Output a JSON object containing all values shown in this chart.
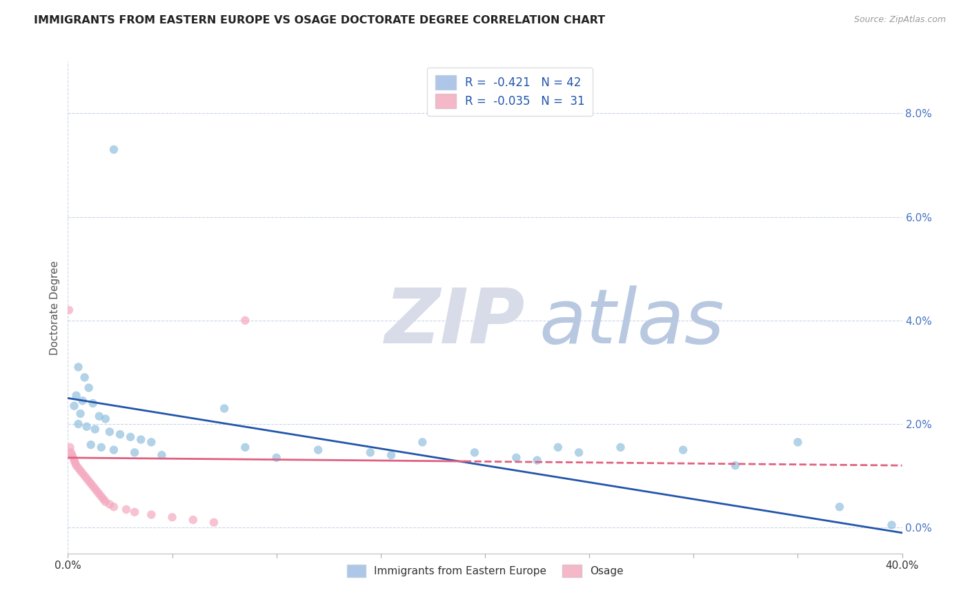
{
  "title": "IMMIGRANTS FROM EASTERN EUROPE VS OSAGE DOCTORATE DEGREE CORRELATION CHART",
  "source": "Source: ZipAtlas.com",
  "ylabel": "Doctorate Degree",
  "right_ytick_vals": [
    0.0,
    2.0,
    4.0,
    6.0,
    8.0
  ],
  "xlim": [
    0.0,
    40.0
  ],
  "ylim": [
    -0.5,
    9.0
  ],
  "legend_label_blue": "Immigrants from Eastern Europe",
  "legend_label_pink": "Osage",
  "legend_r_blue": "R =  -0.421",
  "legend_n_blue": "N = 42",
  "legend_r_pink": "R =  -0.035",
  "legend_n_pink": "N =  31",
  "blue_scatter": [
    [
      2.2,
      7.3
    ],
    [
      0.5,
      3.1
    ],
    [
      0.8,
      2.9
    ],
    [
      1.0,
      2.7
    ],
    [
      0.4,
      2.55
    ],
    [
      0.7,
      2.45
    ],
    [
      1.2,
      2.4
    ],
    [
      0.3,
      2.35
    ],
    [
      0.6,
      2.2
    ],
    [
      1.5,
      2.15
    ],
    [
      1.8,
      2.1
    ],
    [
      0.5,
      2.0
    ],
    [
      0.9,
      1.95
    ],
    [
      1.3,
      1.9
    ],
    [
      2.0,
      1.85
    ],
    [
      2.5,
      1.8
    ],
    [
      3.0,
      1.75
    ],
    [
      3.5,
      1.7
    ],
    [
      4.0,
      1.65
    ],
    [
      1.1,
      1.6
    ],
    [
      1.6,
      1.55
    ],
    [
      2.2,
      1.5
    ],
    [
      3.2,
      1.45
    ],
    [
      4.5,
      1.4
    ],
    [
      7.5,
      2.3
    ],
    [
      8.5,
      1.55
    ],
    [
      10.0,
      1.35
    ],
    [
      12.0,
      1.5
    ],
    [
      14.5,
      1.45
    ],
    [
      15.5,
      1.4
    ],
    [
      17.0,
      1.65
    ],
    [
      19.5,
      1.45
    ],
    [
      21.5,
      1.35
    ],
    [
      22.5,
      1.3
    ],
    [
      23.5,
      1.55
    ],
    [
      24.5,
      1.45
    ],
    [
      26.5,
      1.55
    ],
    [
      29.5,
      1.5
    ],
    [
      32.0,
      1.2
    ],
    [
      35.0,
      1.65
    ],
    [
      37.0,
      0.4
    ],
    [
      39.5,
      0.05
    ]
  ],
  "pink_scatter": [
    [
      0.05,
      4.2
    ],
    [
      0.1,
      1.55
    ],
    [
      0.15,
      1.45
    ],
    [
      0.2,
      1.4
    ],
    [
      0.25,
      1.35
    ],
    [
      0.3,
      1.3
    ],
    [
      0.35,
      1.25
    ],
    [
      0.4,
      1.2
    ],
    [
      0.5,
      1.15
    ],
    [
      0.6,
      1.1
    ],
    [
      0.7,
      1.05
    ],
    [
      0.8,
      1.0
    ],
    [
      0.9,
      0.95
    ],
    [
      1.0,
      0.9
    ],
    [
      1.1,
      0.85
    ],
    [
      1.2,
      0.8
    ],
    [
      1.3,
      0.75
    ],
    [
      1.4,
      0.7
    ],
    [
      1.5,
      0.65
    ],
    [
      1.6,
      0.6
    ],
    [
      1.7,
      0.55
    ],
    [
      1.8,
      0.5
    ],
    [
      2.0,
      0.45
    ],
    [
      2.2,
      0.4
    ],
    [
      2.8,
      0.35
    ],
    [
      3.2,
      0.3
    ],
    [
      4.0,
      0.25
    ],
    [
      5.0,
      0.2
    ],
    [
      6.0,
      0.15
    ],
    [
      7.0,
      0.1
    ],
    [
      8.5,
      4.0
    ]
  ],
  "blue_line": [
    [
      0.0,
      2.5
    ],
    [
      40.0,
      -0.1
    ]
  ],
  "pink_line_solid": [
    [
      0.0,
      1.35
    ],
    [
      19.0,
      1.28
    ]
  ],
  "pink_line_dashed": [
    [
      19.0,
      1.28
    ],
    [
      40.0,
      1.2
    ]
  ],
  "scatter_size": 80,
  "background_color": "#ffffff",
  "scatter_blue_color": "#92bfdf",
  "scatter_pink_color": "#f4a8bf",
  "trend_blue_color": "#2255aa",
  "trend_pink_color": "#e06080",
  "grid_color": "#c8d4e8",
  "wm_zip_color": "#d8dce8",
  "wm_atlas_color": "#b8c8e0"
}
